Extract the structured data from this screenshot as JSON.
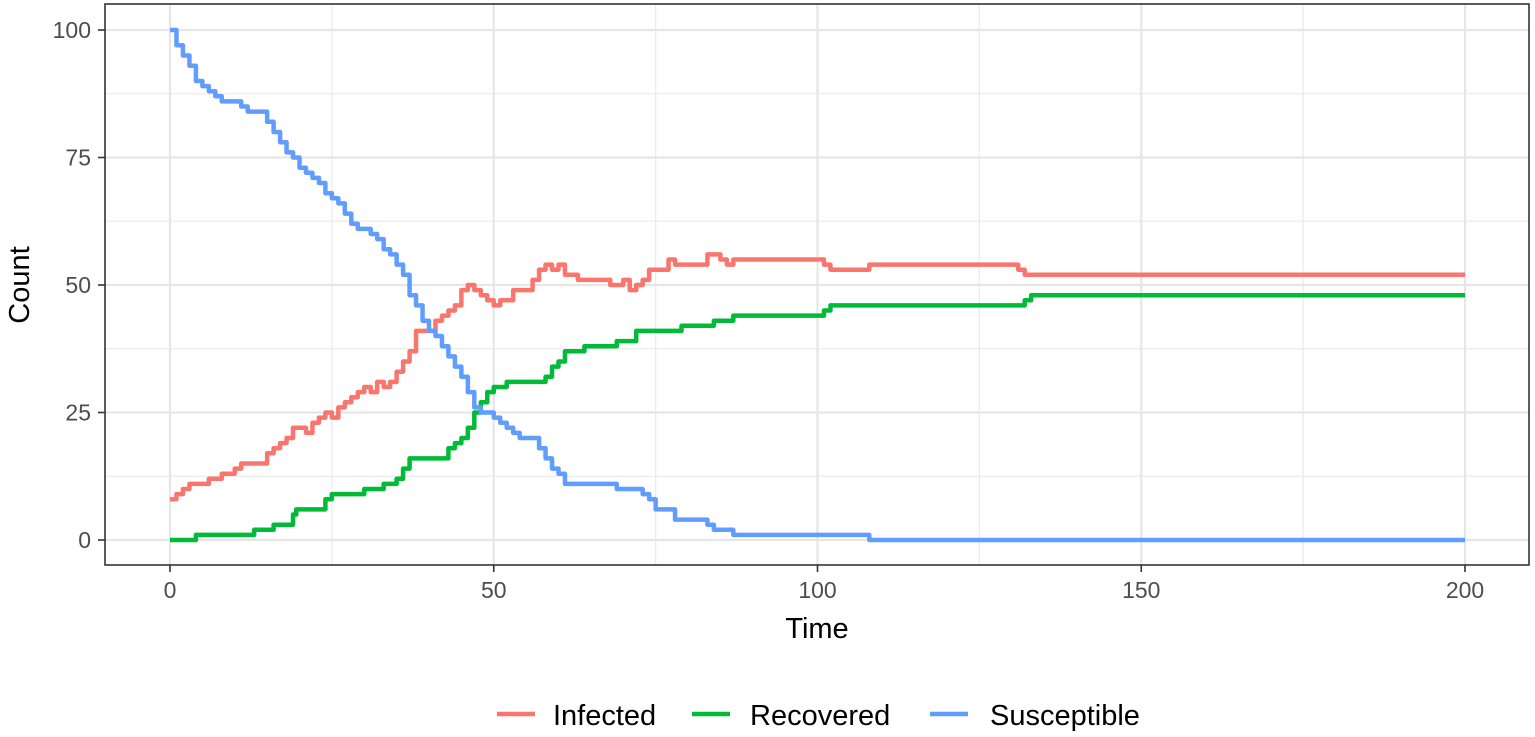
{
  "chart_data": {
    "type": "line",
    "title": "",
    "xlabel": "Time",
    "ylabel": "Count",
    "xlim": [
      -10,
      203
    ],
    "ylim": [
      -5,
      105
    ],
    "x_ticks": [
      0,
      50,
      100,
      150,
      200
    ],
    "y_ticks": [
      0,
      25,
      50,
      75,
      100
    ],
    "x_tick_labels": [
      "0",
      "50",
      "100",
      "150",
      "200"
    ],
    "y_tick_labels": [
      "0",
      "25",
      "50",
      "75",
      "100"
    ],
    "grid": true,
    "legend_position": "bottom",
    "step": true,
    "series": [
      {
        "name": "Infected",
        "color": "#F8766D",
        "points": [
          [
            0,
            8
          ],
          [
            1,
            9
          ],
          [
            2,
            10
          ],
          [
            3,
            11
          ],
          [
            5,
            11
          ],
          [
            6,
            12
          ],
          [
            8,
            13
          ],
          [
            10,
            14
          ],
          [
            11,
            15
          ],
          [
            14,
            15
          ],
          [
            15,
            17
          ],
          [
            16,
            18
          ],
          [
            17,
            19
          ],
          [
            18,
            20
          ],
          [
            19,
            22
          ],
          [
            21,
            21
          ],
          [
            22,
            23
          ],
          [
            23,
            24
          ],
          [
            24,
            25
          ],
          [
            25,
            24
          ],
          [
            26,
            26
          ],
          [
            27,
            27
          ],
          [
            28,
            28
          ],
          [
            29,
            29
          ],
          [
            30,
            30
          ],
          [
            31,
            29
          ],
          [
            32,
            31
          ],
          [
            33,
            30
          ],
          [
            34,
            31
          ],
          [
            35,
            33
          ],
          [
            36,
            35
          ],
          [
            37,
            37
          ],
          [
            38,
            41
          ],
          [
            40,
            41
          ],
          [
            41,
            43
          ],
          [
            42,
            44
          ],
          [
            43,
            45
          ],
          [
            44,
            46
          ],
          [
            45,
            49
          ],
          [
            46,
            50
          ],
          [
            47,
            49
          ],
          [
            48,
            48
          ],
          [
            49,
            47
          ],
          [
            50,
            46
          ],
          [
            51,
            47
          ],
          [
            53,
            49
          ],
          [
            55,
            49
          ],
          [
            56,
            51
          ],
          [
            57,
            53
          ],
          [
            58,
            54
          ],
          [
            59,
            53
          ],
          [
            60,
            54
          ],
          [
            61,
            52
          ],
          [
            62,
            52
          ],
          [
            63,
            51
          ],
          [
            68,
            50
          ],
          [
            70,
            51
          ],
          [
            71,
            49
          ],
          [
            72,
            50
          ],
          [
            73,
            51
          ],
          [
            74,
            53
          ],
          [
            75,
            53
          ],
          [
            77,
            55
          ],
          [
            78,
            54
          ],
          [
            82,
            54
          ],
          [
            83,
            56
          ],
          [
            85,
            55
          ],
          [
            86,
            54
          ],
          [
            87,
            55
          ],
          [
            100,
            55
          ],
          [
            101,
            54
          ],
          [
            102,
            53
          ],
          [
            107,
            53
          ],
          [
            108,
            54
          ],
          [
            130,
            54
          ],
          [
            131,
            53
          ],
          [
            132,
            52
          ],
          [
            200,
            52
          ]
        ]
      },
      {
        "name": "Recovered",
        "color": "#00BA38",
        "points": [
          [
            0,
            0
          ],
          [
            3,
            0
          ],
          [
            4,
            1
          ],
          [
            12,
            1
          ],
          [
            13,
            2
          ],
          [
            15,
            2
          ],
          [
            16,
            3
          ],
          [
            18,
            3
          ],
          [
            19,
            5
          ],
          [
            19.5,
            6
          ],
          [
            23,
            6
          ],
          [
            24,
            8
          ],
          [
            25,
            9
          ],
          [
            29,
            9
          ],
          [
            30,
            10
          ],
          [
            32,
            10
          ],
          [
            33,
            11
          ],
          [
            35,
            12
          ],
          [
            36,
            14
          ],
          [
            37,
            16
          ],
          [
            42,
            16
          ],
          [
            43,
            18
          ],
          [
            44,
            19
          ],
          [
            45,
            20
          ],
          [
            46,
            22
          ],
          [
            47,
            25
          ],
          [
            48,
            27
          ],
          [
            49,
            29
          ],
          [
            50,
            30
          ],
          [
            52,
            31
          ],
          [
            57,
            31
          ],
          [
            58,
            32
          ],
          [
            59,
            34
          ],
          [
            60,
            35
          ],
          [
            61,
            37
          ],
          [
            63,
            37
          ],
          [
            64,
            38
          ],
          [
            68,
            38
          ],
          [
            69,
            39
          ],
          [
            71,
            39
          ],
          [
            72,
            41
          ],
          [
            78,
            41
          ],
          [
            79,
            42
          ],
          [
            83,
            42
          ],
          [
            84,
            43
          ],
          [
            86,
            43
          ],
          [
            87,
            44
          ],
          [
            100,
            44
          ],
          [
            101,
            45
          ],
          [
            102,
            46
          ],
          [
            131,
            46
          ],
          [
            132,
            47
          ],
          [
            133,
            48
          ],
          [
            200,
            48
          ]
        ]
      },
      {
        "name": "Susceptible",
        "color": "#619CFF",
        "points": [
          [
            0,
            100
          ],
          [
            1,
            97
          ],
          [
            2,
            95
          ],
          [
            3,
            93
          ],
          [
            4,
            90
          ],
          [
            5,
            89
          ],
          [
            6,
            88
          ],
          [
            7,
            87
          ],
          [
            8,
            86
          ],
          [
            10,
            86
          ],
          [
            11,
            85
          ],
          [
            12,
            84
          ],
          [
            14,
            84
          ],
          [
            15,
            82
          ],
          [
            16,
            80
          ],
          [
            17,
            78
          ],
          [
            18,
            76
          ],
          [
            19,
            75
          ],
          [
            20,
            73
          ],
          [
            21,
            72
          ],
          [
            22,
            71
          ],
          [
            23,
            70
          ],
          [
            24,
            68
          ],
          [
            25,
            67
          ],
          [
            26,
            66
          ],
          [
            27,
            64
          ],
          [
            28,
            62
          ],
          [
            29,
            61
          ],
          [
            31,
            60
          ],
          [
            32,
            59
          ],
          [
            33,
            57
          ],
          [
            34,
            56
          ],
          [
            35,
            54
          ],
          [
            36,
            52
          ],
          [
            37,
            48
          ],
          [
            38,
            46
          ],
          [
            39,
            43
          ],
          [
            40,
            41
          ],
          [
            41,
            40
          ],
          [
            42,
            38
          ],
          [
            43,
            36
          ],
          [
            44,
            34
          ],
          [
            45,
            32
          ],
          [
            46,
            29
          ],
          [
            47,
            26
          ],
          [
            48,
            25
          ],
          [
            50,
            24
          ],
          [
            51,
            23
          ],
          [
            52,
            22
          ],
          [
            53,
            21
          ],
          [
            54,
            20
          ],
          [
            56,
            20
          ],
          [
            57,
            18
          ],
          [
            58,
            16
          ],
          [
            59,
            14
          ],
          [
            60,
            13
          ],
          [
            61,
            11
          ],
          [
            68,
            11
          ],
          [
            69,
            10
          ],
          [
            72,
            10
          ],
          [
            73,
            9
          ],
          [
            74,
            8
          ],
          [
            75,
            6
          ],
          [
            77,
            6
          ],
          [
            78,
            4
          ],
          [
            82,
            4
          ],
          [
            83,
            3
          ],
          [
            84,
            2
          ],
          [
            86,
            2
          ],
          [
            87,
            1
          ],
          [
            107,
            1
          ],
          [
            108,
            0
          ],
          [
            200,
            0
          ]
        ]
      }
    ]
  },
  "legend": {
    "items": [
      {
        "label": "Infected",
        "color": "#F8766D"
      },
      {
        "label": "Recovered",
        "color": "#00BA38"
      },
      {
        "label": "Susceptible",
        "color": "#619CFF"
      }
    ]
  }
}
